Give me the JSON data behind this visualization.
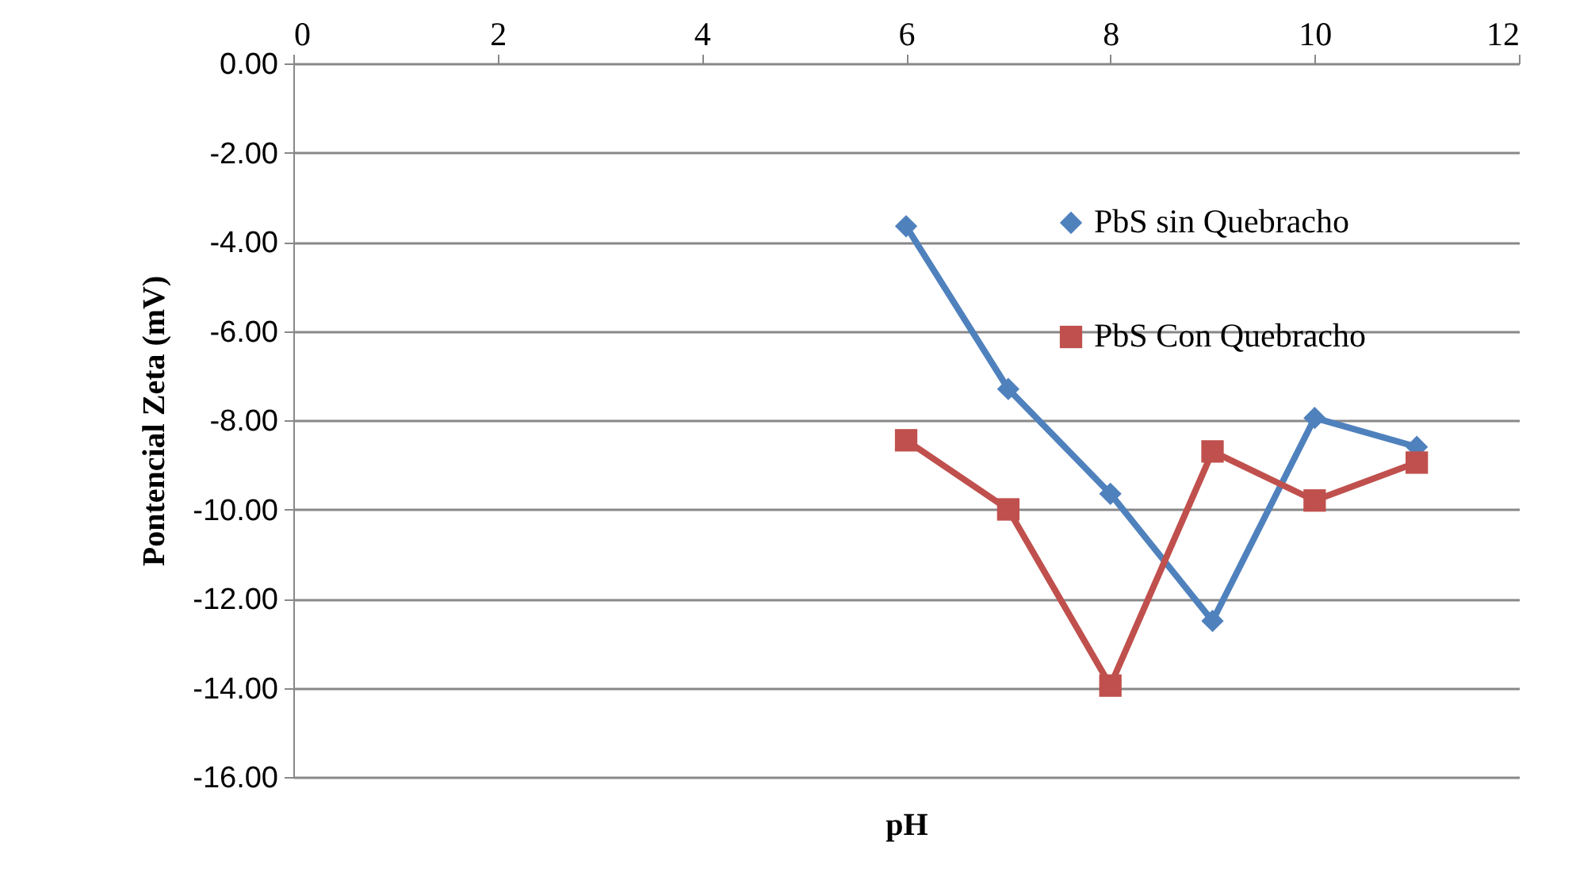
{
  "chart_data": {
    "type": "line",
    "xlabel": "pH",
    "ylabel": "Pontencial Zeta (mV)",
    "x": [
      6,
      7,
      8,
      9,
      10,
      11
    ],
    "series": [
      {
        "name": "PbS sin Quebracho",
        "color": "#4f81bd",
        "marker": "diamond",
        "values": [
          -3.65,
          -7.3,
          -9.65,
          -12.5,
          -7.95,
          -8.6
        ]
      },
      {
        "name": "PbS Con Quebracho",
        "color": "#c0504d",
        "marker": "square",
        "values": [
          -8.45,
          -10.0,
          -13.95,
          -8.7,
          -9.8,
          -8.95
        ]
      }
    ],
    "xlim": [
      0,
      12
    ],
    "xticks": [
      0,
      2,
      4,
      6,
      8,
      10,
      12
    ],
    "ylim": [
      -16,
      0
    ],
    "yticks": [
      {
        "value": 0,
        "label": "0.00"
      },
      {
        "value": -2,
        "label": "-2.00"
      },
      {
        "value": -4,
        "label": "-4.00"
      },
      {
        "value": -6,
        "label": "-6.00"
      },
      {
        "value": -8,
        "label": "-8.00"
      },
      {
        "value": -10,
        "label": "-10.00"
      },
      {
        "value": -12,
        "label": "-12.00"
      },
      {
        "value": -14,
        "label": "-14.00"
      },
      {
        "value": -16,
        "label": "-16.00"
      }
    ],
    "grid": "y",
    "legend": "right",
    "line_style": "solid"
  }
}
